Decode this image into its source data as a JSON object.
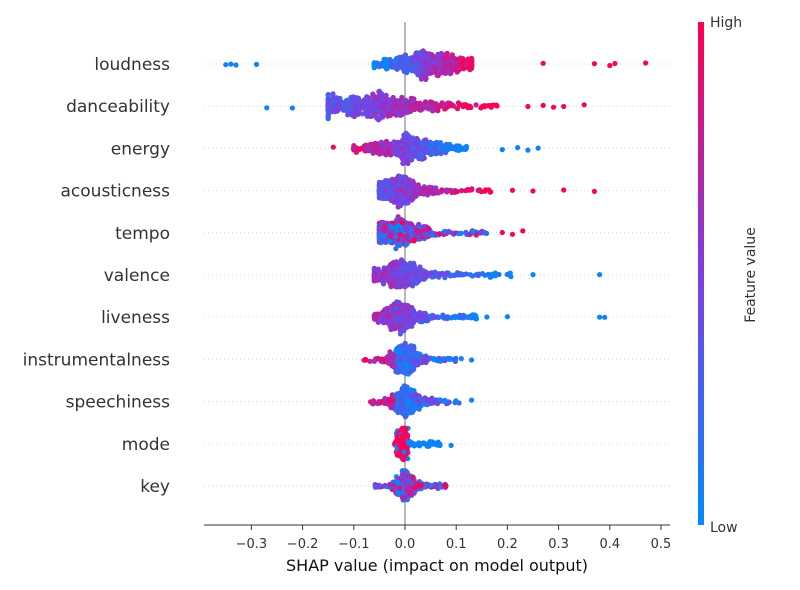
{
  "chart_data": {
    "type": "scatter",
    "subtype": "shap-beeswarm",
    "title": "",
    "xlabel": "SHAP value (impact on model output)",
    "xlim": [
      -0.39,
      0.51
    ],
    "xticks": [
      -0.3,
      -0.2,
      -0.1,
      0.0,
      0.1,
      0.2,
      0.3,
      0.4,
      0.5
    ],
    "xtick_labels": [
      "−0.3",
      "−0.2",
      "−0.1",
      "0.0",
      "0.1",
      "0.2",
      "0.3",
      "0.4",
      "0.5"
    ],
    "grid": false,
    "colorbar": {
      "title": "Feature value",
      "high_label": "High",
      "low_label": "Low",
      "low_color": "#008bfb",
      "high_color": "#ff0051"
    },
    "features": [
      {
        "name": "loudness",
        "range": [
          -0.35,
          0.47
        ],
        "core": [
          -0.06,
          0.13
        ],
        "center": 0.04,
        "width": 0.09,
        "trend": 1,
        "outliers_high": [
          0.27,
          0.37,
          0.4,
          0.41,
          0.47
        ],
        "outliers_low": [
          -0.35,
          -0.34,
          -0.33,
          -0.29
        ]
      },
      {
        "name": "danceability",
        "range": [
          -0.27,
          0.35
        ],
        "core": [
          -0.15,
          0.18
        ],
        "center": -0.06,
        "width": 0.12,
        "trend": 1,
        "outliers_high": [
          0.24,
          0.27,
          0.29,
          0.31,
          0.35
        ],
        "outliers_low": [
          -0.27,
          -0.22
        ]
      },
      {
        "name": "energy",
        "range": [
          -0.14,
          0.26
        ],
        "core": [
          -0.1,
          0.12
        ],
        "center": 0.0,
        "width": 0.08,
        "trend": -1,
        "outliers_high": [
          0.19,
          0.22,
          0.24,
          0.26
        ],
        "outliers_low": [
          -0.14
        ]
      },
      {
        "name": "acousticness",
        "range": [
          -0.06,
          0.37
        ],
        "core": [
          -0.05,
          0.17
        ],
        "center": -0.01,
        "width": 0.05,
        "trend": 1,
        "outliers_high": [
          0.21,
          0.25,
          0.31,
          0.37
        ],
        "outliers_low": []
      },
      {
        "name": "tempo",
        "range": [
          -0.06,
          0.23
        ],
        "core": [
          -0.05,
          0.16
        ],
        "center": -0.01,
        "width": 0.05,
        "trend": 0,
        "outliers_high": [
          0.19,
          0.21,
          0.23
        ],
        "outliers_low": []
      },
      {
        "name": "valence",
        "range": [
          -0.06,
          0.38
        ],
        "core": [
          -0.06,
          0.21
        ],
        "center": -0.01,
        "width": 0.05,
        "trend": -1,
        "outliers_high": [
          0.25,
          0.38
        ],
        "outliers_low": []
      },
      {
        "name": "liveness",
        "range": [
          -0.06,
          0.39
        ],
        "core": [
          -0.06,
          0.14
        ],
        "center": -0.01,
        "width": 0.04,
        "trend": -1,
        "outliers_high": [
          0.16,
          0.2,
          0.38,
          0.39
        ],
        "outliers_low": []
      },
      {
        "name": "instrumentalness",
        "range": [
          -0.08,
          0.13
        ],
        "core": [
          -0.08,
          0.1
        ],
        "center": 0.0,
        "width": 0.03,
        "trend": 0,
        "outliers_high": [
          0.11,
          0.13
        ],
        "outliers_low": [
          -0.08
        ]
      },
      {
        "name": "speechiness",
        "range": [
          -0.07,
          0.13
        ],
        "core": [
          -0.07,
          0.12
        ],
        "center": 0.0,
        "width": 0.03,
        "trend": 0,
        "outliers_high": [
          0.13
        ],
        "outliers_low": []
      },
      {
        "name": "mode",
        "range": [
          -0.02,
          0.09
        ],
        "core": [
          -0.02,
          0.07
        ],
        "center": -0.005,
        "width": 0.01,
        "trend": 0,
        "outliers_high": [
          0.09
        ],
        "outliers_low": []
      },
      {
        "name": "key",
        "range": [
          -0.06,
          0.08
        ],
        "core": [
          -0.06,
          0.08
        ],
        "center": 0.0,
        "width": 0.02,
        "trend": 0,
        "outliers_high": [
          0.08
        ],
        "outliers_low": []
      }
    ]
  }
}
